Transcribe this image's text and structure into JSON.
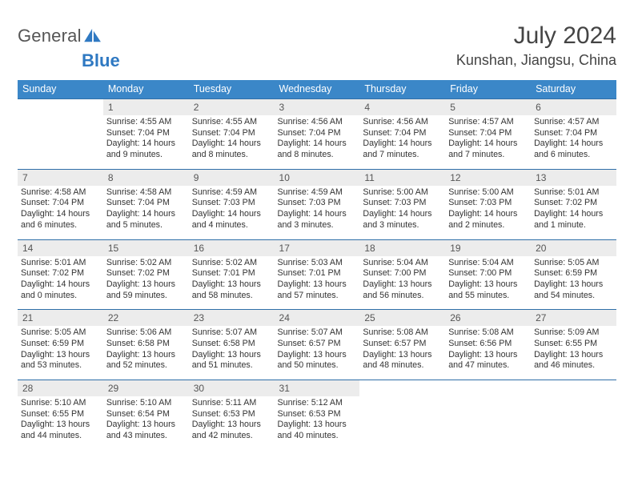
{
  "logo": {
    "general": "General",
    "blue": "Blue"
  },
  "title": "July 2024",
  "location": "Kunshan, Jiangsu, China",
  "headers": [
    "Sunday",
    "Monday",
    "Tuesday",
    "Wednesday",
    "Thursday",
    "Friday",
    "Saturday"
  ],
  "colors": {
    "header_bg": "#3b87c8",
    "header_text": "#ffffff",
    "row_border": "#2f6fa8",
    "daynum_bg": "#ececec",
    "logo_gray": "#555555",
    "logo_blue": "#2f79c2"
  },
  "weeks": [
    [
      null,
      {
        "n": "1",
        "sr": "4:55 AM",
        "ss": "7:04 PM",
        "dl": "14 hours and 9 minutes."
      },
      {
        "n": "2",
        "sr": "4:55 AM",
        "ss": "7:04 PM",
        "dl": "14 hours and 8 minutes."
      },
      {
        "n": "3",
        "sr": "4:56 AM",
        "ss": "7:04 PM",
        "dl": "14 hours and 8 minutes."
      },
      {
        "n": "4",
        "sr": "4:56 AM",
        "ss": "7:04 PM",
        "dl": "14 hours and 7 minutes."
      },
      {
        "n": "5",
        "sr": "4:57 AM",
        "ss": "7:04 PM",
        "dl": "14 hours and 7 minutes."
      },
      {
        "n": "6",
        "sr": "4:57 AM",
        "ss": "7:04 PM",
        "dl": "14 hours and 6 minutes."
      }
    ],
    [
      {
        "n": "7",
        "sr": "4:58 AM",
        "ss": "7:04 PM",
        "dl": "14 hours and 6 minutes."
      },
      {
        "n": "8",
        "sr": "4:58 AM",
        "ss": "7:04 PM",
        "dl": "14 hours and 5 minutes."
      },
      {
        "n": "9",
        "sr": "4:59 AM",
        "ss": "7:03 PM",
        "dl": "14 hours and 4 minutes."
      },
      {
        "n": "10",
        "sr": "4:59 AM",
        "ss": "7:03 PM",
        "dl": "14 hours and 3 minutes."
      },
      {
        "n": "11",
        "sr": "5:00 AM",
        "ss": "7:03 PM",
        "dl": "14 hours and 3 minutes."
      },
      {
        "n": "12",
        "sr": "5:00 AM",
        "ss": "7:03 PM",
        "dl": "14 hours and 2 minutes."
      },
      {
        "n": "13",
        "sr": "5:01 AM",
        "ss": "7:02 PM",
        "dl": "14 hours and 1 minute."
      }
    ],
    [
      {
        "n": "14",
        "sr": "5:01 AM",
        "ss": "7:02 PM",
        "dl": "14 hours and 0 minutes."
      },
      {
        "n": "15",
        "sr": "5:02 AM",
        "ss": "7:02 PM",
        "dl": "13 hours and 59 minutes."
      },
      {
        "n": "16",
        "sr": "5:02 AM",
        "ss": "7:01 PM",
        "dl": "13 hours and 58 minutes."
      },
      {
        "n": "17",
        "sr": "5:03 AM",
        "ss": "7:01 PM",
        "dl": "13 hours and 57 minutes."
      },
      {
        "n": "18",
        "sr": "5:04 AM",
        "ss": "7:00 PM",
        "dl": "13 hours and 56 minutes."
      },
      {
        "n": "19",
        "sr": "5:04 AM",
        "ss": "7:00 PM",
        "dl": "13 hours and 55 minutes."
      },
      {
        "n": "20",
        "sr": "5:05 AM",
        "ss": "6:59 PM",
        "dl": "13 hours and 54 minutes."
      }
    ],
    [
      {
        "n": "21",
        "sr": "5:05 AM",
        "ss": "6:59 PM",
        "dl": "13 hours and 53 minutes."
      },
      {
        "n": "22",
        "sr": "5:06 AM",
        "ss": "6:58 PM",
        "dl": "13 hours and 52 minutes."
      },
      {
        "n": "23",
        "sr": "5:07 AM",
        "ss": "6:58 PM",
        "dl": "13 hours and 51 minutes."
      },
      {
        "n": "24",
        "sr": "5:07 AM",
        "ss": "6:57 PM",
        "dl": "13 hours and 50 minutes."
      },
      {
        "n": "25",
        "sr": "5:08 AM",
        "ss": "6:57 PM",
        "dl": "13 hours and 48 minutes."
      },
      {
        "n": "26",
        "sr": "5:08 AM",
        "ss": "6:56 PM",
        "dl": "13 hours and 47 minutes."
      },
      {
        "n": "27",
        "sr": "5:09 AM",
        "ss": "6:55 PM",
        "dl": "13 hours and 46 minutes."
      }
    ],
    [
      {
        "n": "28",
        "sr": "5:10 AM",
        "ss": "6:55 PM",
        "dl": "13 hours and 44 minutes."
      },
      {
        "n": "29",
        "sr": "5:10 AM",
        "ss": "6:54 PM",
        "dl": "13 hours and 43 minutes."
      },
      {
        "n": "30",
        "sr": "5:11 AM",
        "ss": "6:53 PM",
        "dl": "13 hours and 42 minutes."
      },
      {
        "n": "31",
        "sr": "5:12 AM",
        "ss": "6:53 PM",
        "dl": "13 hours and 40 minutes."
      },
      null,
      null,
      null
    ]
  ],
  "labels": {
    "sunrise": "Sunrise:",
    "sunset": "Sunset:",
    "daylight": "Daylight:"
  }
}
